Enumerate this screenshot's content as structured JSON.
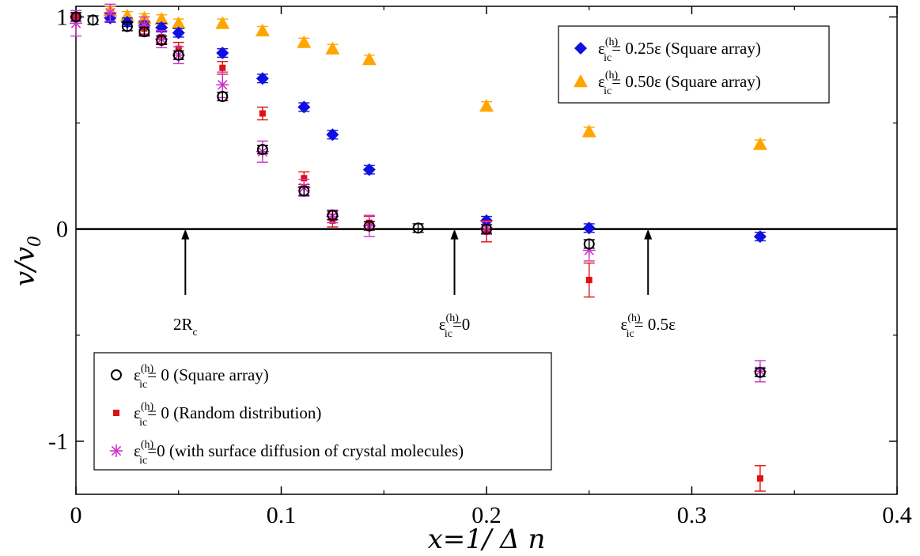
{
  "chart_data": {
    "type": "scatter",
    "xlabel": "x=1/ Δ n",
    "ylabel": "v/v",
    "ylabel_sub": "0",
    "xlim": [
      0,
      0.4
    ],
    "ylim": [
      -1.25,
      1.05
    ],
    "x_ticks": [
      {
        "value": 0,
        "label": "0"
      },
      {
        "value": 0.1,
        "label": "0.1"
      },
      {
        "value": 0.2,
        "label": "0.2"
      },
      {
        "value": 0.3,
        "label": "0.3"
      },
      {
        "value": 0.4,
        "label": "0.4"
      }
    ],
    "y_ticks": [
      {
        "value": 1,
        "label": "1"
      },
      {
        "value": 0,
        "label": "0"
      },
      {
        "value": -1,
        "label": "-1"
      }
    ],
    "zero_line": true,
    "series": [
      {
        "name": "ε_ic^(h) = 0.25ε (Square array)",
        "legend_base": "ε",
        "legend_sup": "(h)",
        "legend_sub": "ic",
        "legend_rest": "= 0.25ε (Square array)",
        "marker": "diamond",
        "color": "#1010e0",
        "points": [
          {
            "x": 0.0,
            "y": 1.0,
            "err": 0.02
          },
          {
            "x": 0.0167,
            "y": 0.995,
            "err": 0.02
          },
          {
            "x": 0.025,
            "y": 0.975,
            "err": 0.02
          },
          {
            "x": 0.0333,
            "y": 0.96,
            "err": 0.02
          },
          {
            "x": 0.0417,
            "y": 0.95,
            "err": 0.02
          },
          {
            "x": 0.05,
            "y": 0.925,
            "err": 0.02
          },
          {
            "x": 0.0714,
            "y": 0.83,
            "err": 0.02
          },
          {
            "x": 0.0909,
            "y": 0.71,
            "err": 0.02
          },
          {
            "x": 0.1111,
            "y": 0.575,
            "err": 0.02
          },
          {
            "x": 0.125,
            "y": 0.445,
            "err": 0.02
          },
          {
            "x": 0.1429,
            "y": 0.28,
            "err": 0.02
          },
          {
            "x": 0.2,
            "y": 0.04,
            "err": 0.02
          },
          {
            "x": 0.25,
            "y": 0.005,
            "err": 0.02
          },
          {
            "x": 0.3333,
            "y": -0.035,
            "err": 0.02
          }
        ]
      },
      {
        "name": "ε_ic^(h) = 0.50ε (Square array)",
        "legend_base": "ε",
        "legend_sup": "(h)",
        "legend_sub": "ic",
        "legend_rest": "= 0.50ε  (Square array)",
        "marker": "triangle",
        "color": "#ffa500",
        "points": [
          {
            "x": 0.0167,
            "y": 1.03,
            "err": 0.02
          },
          {
            "x": 0.025,
            "y": 1.005,
            "err": 0.02
          },
          {
            "x": 0.0333,
            "y": 0.995,
            "err": 0.02
          },
          {
            "x": 0.0417,
            "y": 0.99,
            "err": 0.02
          },
          {
            "x": 0.05,
            "y": 0.97,
            "err": 0.02
          },
          {
            "x": 0.0714,
            "y": 0.97,
            "err": 0.02
          },
          {
            "x": 0.0909,
            "y": 0.935,
            "err": 0.02
          },
          {
            "x": 0.1111,
            "y": 0.88,
            "err": 0.02
          },
          {
            "x": 0.125,
            "y": 0.85,
            "err": 0.02
          },
          {
            "x": 0.1429,
            "y": 0.8,
            "err": 0.02
          },
          {
            "x": 0.2,
            "y": 0.58,
            "err": 0.02
          },
          {
            "x": 0.25,
            "y": 0.46,
            "err": 0.02
          },
          {
            "x": 0.3333,
            "y": 0.4,
            "err": 0.02
          }
        ]
      },
      {
        "name": "ε_ic^(h) = 0 (Square array)",
        "legend_base": "ε",
        "legend_sup": "(h)",
        "legend_sub": "ic",
        "legend_rest": "= 0  (Square array)",
        "marker": "circle",
        "color": "#000000",
        "points": [
          {
            "x": 0.0,
            "y": 1.0,
            "err": 0.02
          },
          {
            "x": 0.0083,
            "y": 0.985,
            "err": 0.02
          },
          {
            "x": 0.025,
            "y": 0.955,
            "err": 0.02
          },
          {
            "x": 0.0333,
            "y": 0.93,
            "err": 0.02
          },
          {
            "x": 0.0417,
            "y": 0.89,
            "err": 0.02
          },
          {
            "x": 0.05,
            "y": 0.82,
            "err": 0.02
          },
          {
            "x": 0.0714,
            "y": 0.625,
            "err": 0.02
          },
          {
            "x": 0.0909,
            "y": 0.375,
            "err": 0.02
          },
          {
            "x": 0.1111,
            "y": 0.18,
            "err": 0.02
          },
          {
            "x": 0.125,
            "y": 0.065,
            "err": 0.02
          },
          {
            "x": 0.1429,
            "y": 0.015,
            "err": 0.02
          },
          {
            "x": 0.1667,
            "y": 0.005,
            "err": 0.02
          },
          {
            "x": 0.2,
            "y": 0.0,
            "err": 0.02
          },
          {
            "x": 0.25,
            "y": -0.07,
            "err": 0.02
          },
          {
            "x": 0.3333,
            "y": -0.675,
            "err": 0.02
          }
        ]
      },
      {
        "name": "ε_ic^(h) = 0 (Random distribution)",
        "legend_base": "ε",
        "legend_sup": "(h)",
        "legend_sub": "ic",
        "legend_rest": "= 0  (Random distribution)",
        "marker": "square",
        "color": "#e01010",
        "points": [
          {
            "x": 0.0,
            "y": 1.0,
            "err": 0.02
          },
          {
            "x": 0.0333,
            "y": 0.945,
            "err": 0.03
          },
          {
            "x": 0.0417,
            "y": 0.905,
            "err": 0.03
          },
          {
            "x": 0.05,
            "y": 0.85,
            "err": 0.03
          },
          {
            "x": 0.0714,
            "y": 0.76,
            "err": 0.03
          },
          {
            "x": 0.0909,
            "y": 0.545,
            "err": 0.03
          },
          {
            "x": 0.1111,
            "y": 0.24,
            "err": 0.03
          },
          {
            "x": 0.125,
            "y": 0.04,
            "err": 0.03
          },
          {
            "x": 0.1429,
            "y": 0.03,
            "err": 0.03
          },
          {
            "x": 0.2,
            "y": -0.01,
            "err": 0.05
          },
          {
            "x": 0.25,
            "y": -0.24,
            "err": 0.08
          },
          {
            "x": 0.3333,
            "y": -1.175,
            "err": 0.06
          }
        ]
      },
      {
        "name": "ε_ic^(h)=0 (with surface diffusion of crystal molecules)",
        "legend_base": "ε",
        "legend_sup": "(h)",
        "legend_sub": "ic",
        "legend_rest": "=0 (with surface  diffusion of crystal molecules)",
        "marker": "star",
        "color": "#cc33cc",
        "points": [
          {
            "x": 0.0,
            "y": 0.97,
            "err": 0.06
          },
          {
            "x": 0.0167,
            "y": 1.02,
            "err": 0.04
          },
          {
            "x": 0.0333,
            "y": 0.96,
            "err": 0.04
          },
          {
            "x": 0.0417,
            "y": 0.895,
            "err": 0.04
          },
          {
            "x": 0.05,
            "y": 0.82,
            "err": 0.04
          },
          {
            "x": 0.0714,
            "y": 0.68,
            "err": 0.06
          },
          {
            "x": 0.0909,
            "y": 0.365,
            "err": 0.05
          },
          {
            "x": 0.1111,
            "y": 0.195,
            "err": 0.04
          },
          {
            "x": 0.125,
            "y": 0.06,
            "err": 0.03
          },
          {
            "x": 0.1429,
            "y": 0.015,
            "err": 0.05
          },
          {
            "x": 0.2,
            "y": 0.005,
            "err": 0.03
          },
          {
            "x": 0.25,
            "y": -0.1,
            "err": 0.05
          },
          {
            "x": 0.3333,
            "y": -0.67,
            "err": 0.05
          }
        ]
      }
    ],
    "annotations": [
      {
        "name": "annot-2rc",
        "x": 0.0533,
        "y_tip": 0.0,
        "y_tail": -0.31,
        "text": "2R",
        "text_sub": "c"
      },
      {
        "name": "annot-eps0",
        "x": 0.1844,
        "y_tip": 0.0,
        "y_tail": -0.31,
        "text_base": "ε",
        "text_sup": "(h)",
        "text_sub": "ic",
        "text_rest": "=0"
      },
      {
        "name": "annot-eps05",
        "x": 0.2787,
        "y_tip": 0.0,
        "y_tail": -0.31,
        "text_base": "ε",
        "text_sup": "(h)",
        "text_sub": "ic",
        "text_rest": "= 0.5ε"
      }
    ],
    "legends": [
      {
        "name": "legend-top-right",
        "placement": "top-right",
        "series": [
          0,
          1
        ]
      },
      {
        "name": "legend-bottom-left",
        "placement": "bottom-left",
        "series": [
          2,
          3,
          4
        ]
      }
    ]
  }
}
